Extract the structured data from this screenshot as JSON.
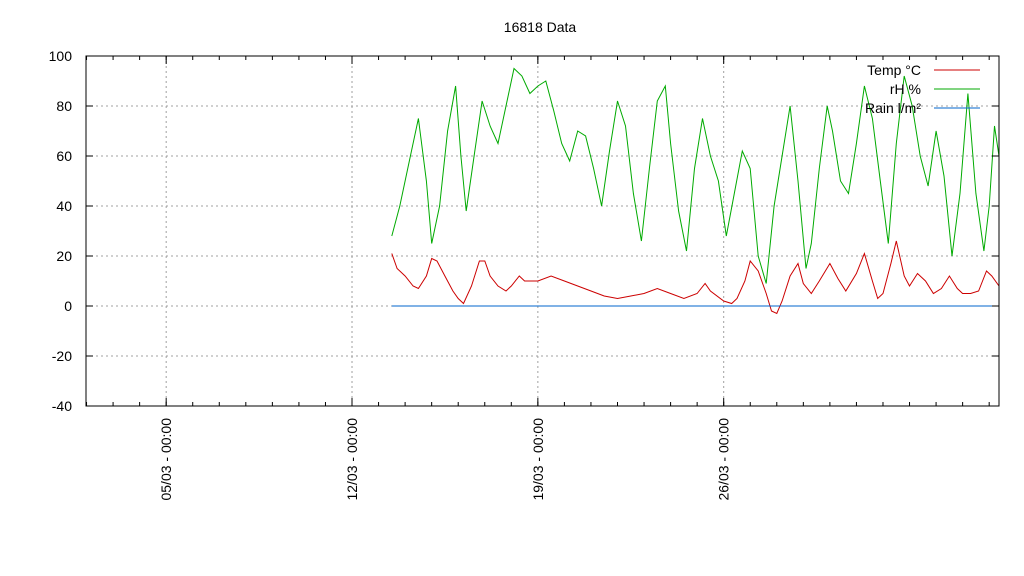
{
  "chart_data": {
    "type": "line",
    "title": "16818 Data",
    "xlabel": "",
    "ylabel": "",
    "ylim": [
      -40,
      100
    ],
    "yticks": [
      -40,
      -20,
      0,
      20,
      40,
      60,
      80,
      100
    ],
    "x_unit": "days (March)",
    "xlim": [
      1.98,
      36.37
    ],
    "xticks": [
      {
        "x": 5,
        "label": "05/03 - 00:00"
      },
      {
        "x": 12,
        "label": "12/03 - 00:00"
      },
      {
        "x": 19,
        "label": "19/03 - 00:00"
      },
      {
        "x": 26,
        "label": "26/03 - 00:00"
      }
    ],
    "grid": true,
    "legend_position": "top-right",
    "series": [
      {
        "name": "Temp °C",
        "color": "#cc0000",
        "points": [
          [
            13.5,
            21
          ],
          [
            13.7,
            15
          ],
          [
            14.0,
            12
          ],
          [
            14.3,
            8
          ],
          [
            14.5,
            7
          ],
          [
            14.8,
            12
          ],
          [
            15.0,
            19
          ],
          [
            15.2,
            18
          ],
          [
            15.5,
            12
          ],
          [
            15.8,
            6
          ],
          [
            16.0,
            3
          ],
          [
            16.2,
            1
          ],
          [
            16.5,
            8
          ],
          [
            16.8,
            18
          ],
          [
            17.0,
            18
          ],
          [
            17.2,
            12
          ],
          [
            17.5,
            8
          ],
          [
            17.8,
            6
          ],
          [
            18.0,
            8
          ],
          [
            18.3,
            12
          ],
          [
            18.5,
            10
          ],
          [
            19.0,
            10
          ],
          [
            19.5,
            12
          ],
          [
            20.0,
            10
          ],
          [
            20.5,
            8
          ],
          [
            21.0,
            6
          ],
          [
            21.5,
            4
          ],
          [
            22.0,
            3
          ],
          [
            22.5,
            4
          ],
          [
            23.0,
            5
          ],
          [
            23.5,
            7
          ],
          [
            24.0,
            5
          ],
          [
            24.5,
            3
          ],
          [
            25.0,
            5
          ],
          [
            25.3,
            9
          ],
          [
            25.5,
            6
          ],
          [
            26.0,
            2
          ],
          [
            26.3,
            1
          ],
          [
            26.5,
            3
          ],
          [
            26.8,
            10
          ],
          [
            27.0,
            18
          ],
          [
            27.3,
            14
          ],
          [
            27.6,
            5
          ],
          [
            27.8,
            -2
          ],
          [
            28.0,
            -3
          ],
          [
            28.2,
            2
          ],
          [
            28.5,
            12
          ],
          [
            28.8,
            17
          ],
          [
            29.0,
            9
          ],
          [
            29.3,
            5
          ],
          [
            29.6,
            10
          ],
          [
            30.0,
            17
          ],
          [
            30.3,
            11
          ],
          [
            30.6,
            6
          ],
          [
            31.0,
            13
          ],
          [
            31.3,
            21
          ],
          [
            31.6,
            10
          ],
          [
            31.8,
            3
          ],
          [
            32.0,
            5
          ],
          [
            32.3,
            17
          ],
          [
            32.5,
            26
          ],
          [
            32.8,
            12
          ],
          [
            33.0,
            8
          ],
          [
            33.3,
            13
          ],
          [
            33.6,
            10
          ],
          [
            33.9,
            5
          ],
          [
            34.2,
            7
          ],
          [
            34.5,
            12
          ],
          [
            34.8,
            7
          ],
          [
            35.0,
            5
          ],
          [
            35.3,
            5
          ],
          [
            35.6,
            6
          ],
          [
            35.9,
            14
          ],
          [
            36.1,
            12
          ],
          [
            36.37,
            8
          ]
        ]
      },
      {
        "name": "rH %",
        "color": "#00aa00",
        "points": [
          [
            13.5,
            28
          ],
          [
            13.8,
            40
          ],
          [
            14.2,
            60
          ],
          [
            14.5,
            75
          ],
          [
            14.8,
            50
          ],
          [
            15.0,
            25
          ],
          [
            15.3,
            40
          ],
          [
            15.6,
            70
          ],
          [
            15.9,
            88
          ],
          [
            16.1,
            60
          ],
          [
            16.3,
            38
          ],
          [
            16.6,
            60
          ],
          [
            16.9,
            82
          ],
          [
            17.2,
            72
          ],
          [
            17.5,
            65
          ],
          [
            17.8,
            80
          ],
          [
            18.1,
            95
          ],
          [
            18.4,
            92
          ],
          [
            18.7,
            85
          ],
          [
            19.0,
            88
          ],
          [
            19.3,
            90
          ],
          [
            19.6,
            78
          ],
          [
            19.9,
            65
          ],
          [
            20.2,
            58
          ],
          [
            20.5,
            70
          ],
          [
            20.8,
            68
          ],
          [
            21.1,
            55
          ],
          [
            21.4,
            40
          ],
          [
            21.7,
            62
          ],
          [
            22.0,
            82
          ],
          [
            22.3,
            72
          ],
          [
            22.6,
            45
          ],
          [
            22.9,
            26
          ],
          [
            23.2,
            55
          ],
          [
            23.5,
            82
          ],
          [
            23.8,
            88
          ],
          [
            24.0,
            65
          ],
          [
            24.3,
            38
          ],
          [
            24.6,
            22
          ],
          [
            24.9,
            55
          ],
          [
            25.2,
            75
          ],
          [
            25.5,
            60
          ],
          [
            25.8,
            50
          ],
          [
            26.1,
            28
          ],
          [
            26.4,
            45
          ],
          [
            26.7,
            62
          ],
          [
            27.0,
            55
          ],
          [
            27.3,
            20
          ],
          [
            27.6,
            9
          ],
          [
            27.9,
            40
          ],
          [
            28.2,
            60
          ],
          [
            28.5,
            80
          ],
          [
            28.8,
            50
          ],
          [
            29.1,
            15
          ],
          [
            29.3,
            25
          ],
          [
            29.6,
            55
          ],
          [
            29.9,
            80
          ],
          [
            30.1,
            70
          ],
          [
            30.4,
            50
          ],
          [
            30.7,
            45
          ],
          [
            31.0,
            65
          ],
          [
            31.3,
            88
          ],
          [
            31.6,
            75
          ],
          [
            31.9,
            50
          ],
          [
            32.2,
            25
          ],
          [
            32.5,
            65
          ],
          [
            32.8,
            92
          ],
          [
            33.1,
            80
          ],
          [
            33.4,
            60
          ],
          [
            33.7,
            48
          ],
          [
            34.0,
            70
          ],
          [
            34.3,
            52
          ],
          [
            34.6,
            20
          ],
          [
            34.9,
            45
          ],
          [
            35.2,
            85
          ],
          [
            35.5,
            45
          ],
          [
            35.8,
            22
          ],
          [
            36.0,
            40
          ],
          [
            36.2,
            72
          ],
          [
            36.37,
            60
          ]
        ]
      },
      {
        "name": "Rain l/m²",
        "color": "#0066cc",
        "points": [
          [
            13.5,
            0
          ],
          [
            36.37,
            0
          ]
        ]
      }
    ]
  }
}
